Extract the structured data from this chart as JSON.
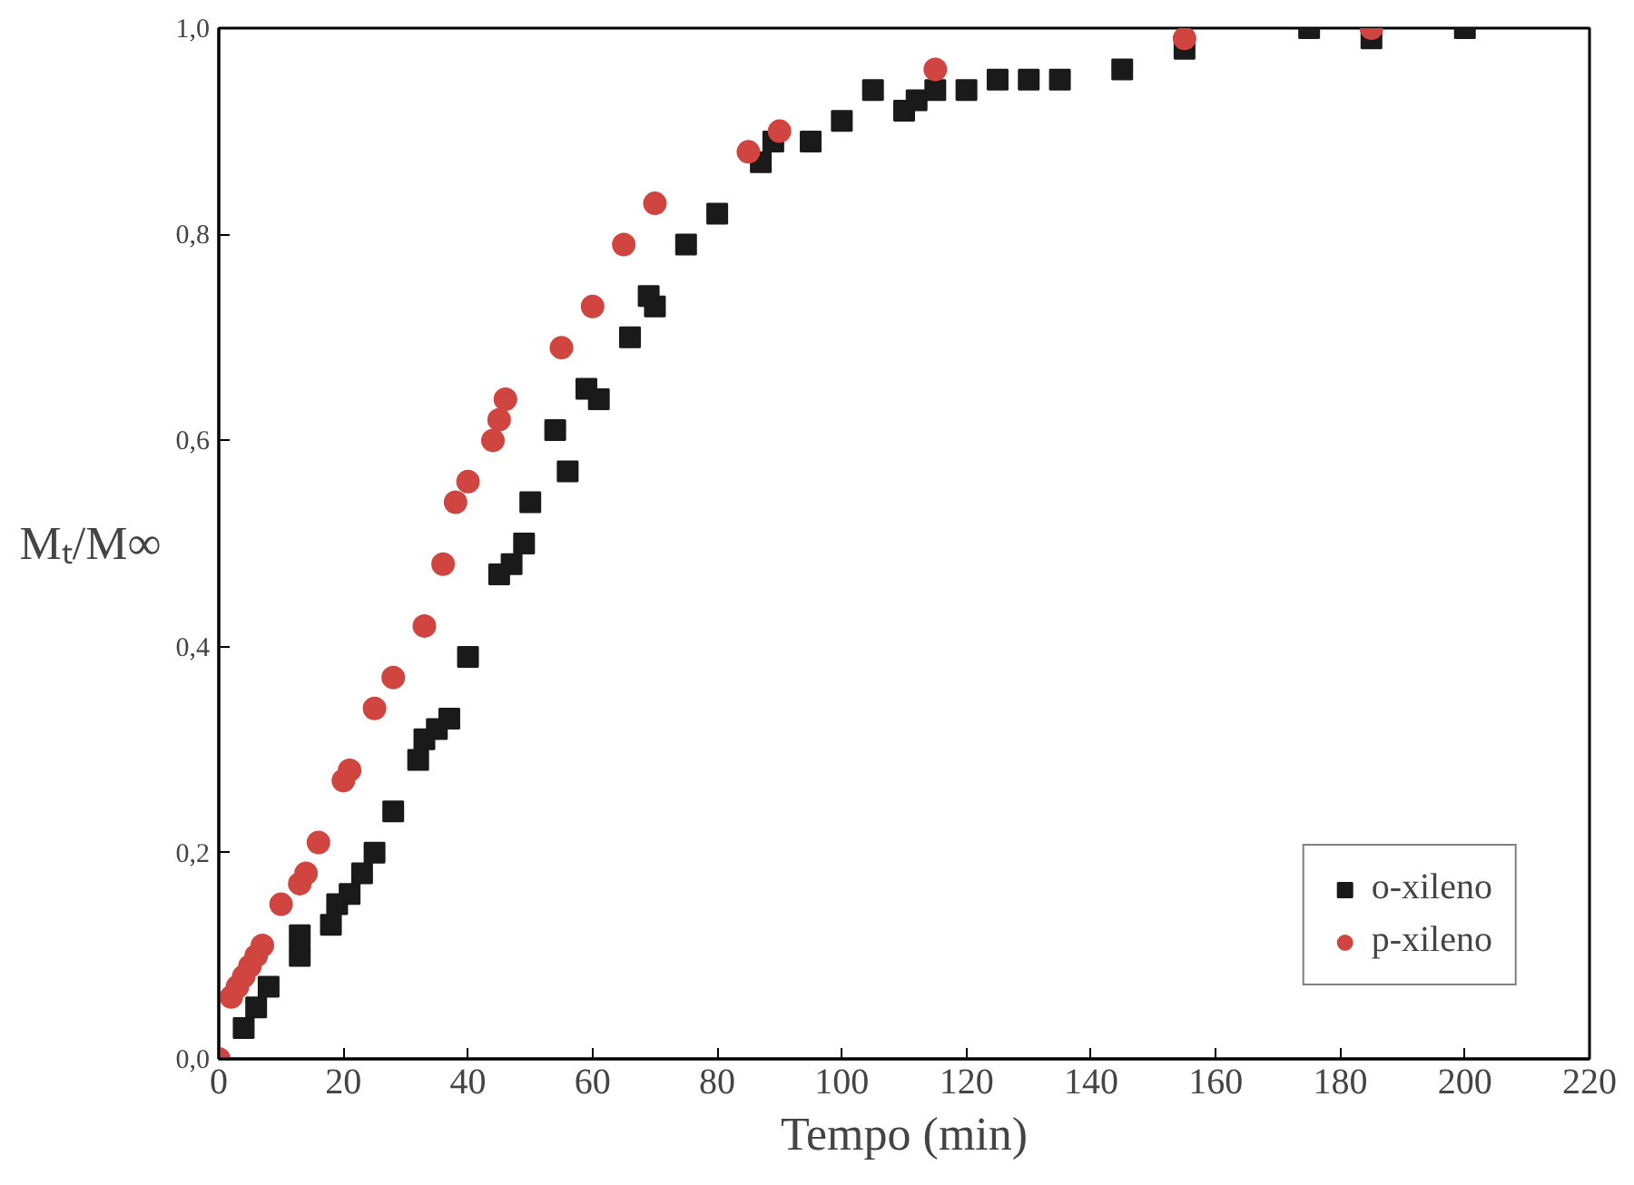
{
  "chart_data": {
    "type": "scatter",
    "xlabel": "Tempo (min)",
    "ylabel": "Mₜ/M∞",
    "xlim": [
      0,
      220
    ],
    "ylim": [
      0,
      1.0
    ],
    "xticks": [
      0,
      20,
      40,
      60,
      80,
      100,
      120,
      140,
      160,
      180,
      200,
      220
    ],
    "yticks": [
      {
        "value": 0,
        "label": "0,0"
      },
      {
        "value": 0.2,
        "label": "0,2"
      },
      {
        "value": 0.4,
        "label": "0,4"
      },
      {
        "value": 0.6,
        "label": "0,6"
      },
      {
        "value": 0.8,
        "label": "0,8"
      },
      {
        "value": 1.0,
        "label": "1,0"
      }
    ],
    "grid": false,
    "legend": "bottom right",
    "series": [
      {
        "name": "o-xileno",
        "color": "#1a1a1a",
        "marker": "square",
        "x": [
          4,
          6,
          8,
          13,
          13,
          18,
          19,
          21,
          23,
          25,
          28,
          32,
          33,
          35,
          37,
          40,
          45,
          47,
          49,
          50,
          54,
          56,
          59,
          61,
          66,
          69,
          70,
          75,
          80,
          87,
          89,
          95,
          100,
          105,
          110,
          112,
          115,
          120,
          125,
          130,
          135,
          145,
          155,
          175,
          185,
          200
        ],
        "values": [
          0.03,
          0.05,
          0.07,
          0.1,
          0.12,
          0.13,
          0.15,
          0.16,
          0.18,
          0.2,
          0.24,
          0.29,
          0.31,
          0.32,
          0.33,
          0.39,
          0.47,
          0.48,
          0.5,
          0.54,
          0.61,
          0.57,
          0.65,
          0.64,
          0.7,
          0.74,
          0.73,
          0.79,
          0.82,
          0.87,
          0.89,
          0.89,
          0.91,
          0.94,
          0.92,
          0.93,
          0.94,
          0.94,
          0.95,
          0.95,
          0.95,
          0.96,
          0.98,
          1.0,
          0.99,
          1.0
        ]
      },
      {
        "name": "p-xileno",
        "color": "#d0453f",
        "marker": "circle",
        "x": [
          0,
          2,
          3,
          4,
          5,
          6,
          7,
          10,
          13,
          14,
          16,
          20,
          21,
          25,
          28,
          33,
          36,
          38,
          40,
          44,
          45,
          46,
          55,
          60,
          65,
          70,
          85,
          90,
          115,
          155,
          185
        ],
        "values": [
          0,
          0.06,
          0.07,
          0.08,
          0.09,
          0.1,
          0.11,
          0.15,
          0.17,
          0.18,
          0.21,
          0.27,
          0.28,
          0.34,
          0.37,
          0.42,
          0.48,
          0.54,
          0.56,
          0.6,
          0.62,
          0.64,
          0.69,
          0.73,
          0.79,
          0.83,
          0.88,
          0.9,
          0.96,
          0.99,
          1.0
        ]
      }
    ]
  }
}
